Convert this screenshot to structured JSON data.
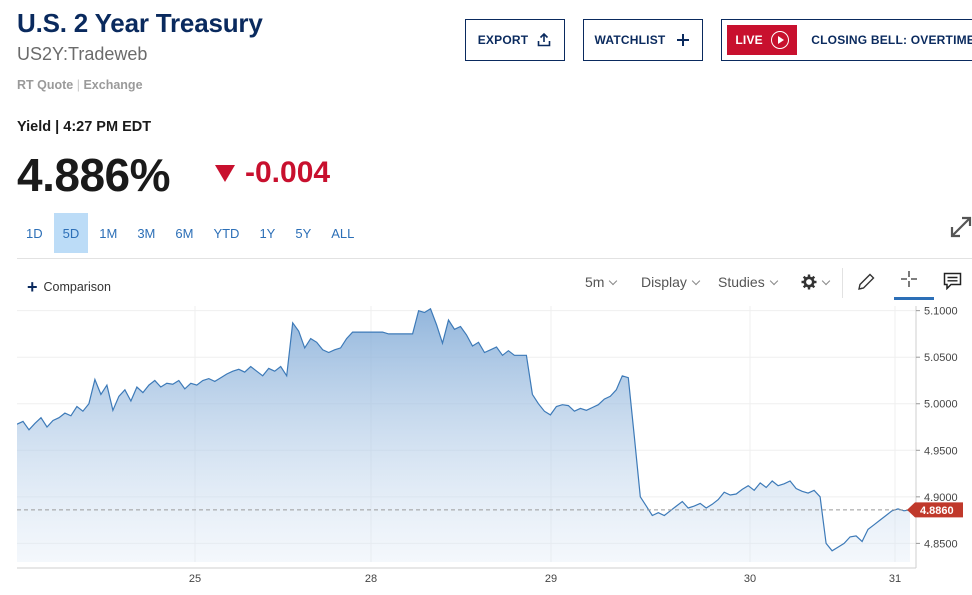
{
  "header": {
    "title": "U.S. 2 Year Treasury",
    "symbol": "US2Y:Tradeweb",
    "quote_type": "RT Quote",
    "quote_source": "Exchange",
    "export_label": "EXPORT",
    "watchlist_label": "WATCHLIST",
    "live_label": "LIVE",
    "closing_bell_label": "CLOSING BELL: OVERTIME"
  },
  "quote": {
    "label": "Yield",
    "time": "4:27 PM EDT",
    "price": "4.886%",
    "change": "-0.004",
    "change_color": "#c8102e"
  },
  "ranges": [
    "1D",
    "5D",
    "1M",
    "3M",
    "6M",
    "YTD",
    "1Y",
    "5Y",
    "ALL"
  ],
  "active_range": "5D",
  "toolbar": {
    "comparison_label": "Comparison",
    "interval_label": "5m",
    "display_label": "Display",
    "studies_label": "Studies"
  },
  "chart_data": {
    "type": "area",
    "x_ticks": [
      "25",
      "28",
      "29",
      "30",
      "31"
    ],
    "y_ticks": [
      "5.1000",
      "5.0500",
      "5.0000",
      "4.9500",
      "4.9000",
      "4.8500"
    ],
    "ylim": [
      4.83,
      5.105
    ],
    "current_value_label": "4.8860",
    "current_value": 4.886,
    "line_color": "#3d7ab8",
    "accent_color": "#c0392b",
    "grid": true,
    "series": [
      {
        "values": [
          4.978,
          4.981,
          4.972,
          4.979,
          4.985,
          4.975,
          4.982,
          4.985,
          4.99,
          4.987,
          4.997,
          4.992,
          5.0,
          5.026,
          5.01,
          5.02,
          4.993,
          5.008,
          5.015,
          5.003,
          5.018,
          5.012,
          5.02,
          5.025,
          5.018,
          5.022,
          5.021,
          5.025,
          5.016,
          5.022,
          5.02,
          5.025,
          5.027,
          5.024,
          5.028,
          5.032,
          5.035,
          5.037,
          5.034,
          5.04,
          5.035,
          5.03,
          5.038,
          5.035,
          5.04,
          5.03,
          5.087,
          5.078,
          5.06,
          5.07,
          5.066,
          5.058,
          5.055,
          5.058,
          5.06,
          5.07,
          5.077,
          5.077,
          5.077,
          5.077,
          5.077,
          5.077,
          5.075,
          5.075,
          5.075,
          5.075,
          5.075,
          5.1,
          5.098,
          5.102,
          5.085,
          5.065,
          5.09,
          5.08,
          5.083,
          5.074,
          5.062,
          5.066,
          5.055,
          5.058,
          5.061,
          5.052,
          5.057,
          5.052,
          5.052,
          5.052,
          5.01,
          5.0,
          4.992,
          4.988,
          4.997,
          4.999,
          4.998,
          4.992,
          4.995,
          4.993,
          4.996,
          4.999,
          5.005,
          5.008,
          5.015,
          5.03,
          5.028,
          4.965,
          4.9,
          4.89,
          4.88,
          4.883,
          4.88,
          4.885,
          4.89,
          4.895,
          4.888,
          4.89,
          4.893,
          4.888,
          4.892,
          4.897,
          4.905,
          4.902,
          4.903,
          4.908,
          4.912,
          4.907,
          4.915,
          4.91,
          4.917,
          4.912,
          4.914,
          4.917,
          4.909,
          4.906,
          4.904,
          4.907,
          4.9,
          4.85,
          4.842,
          4.846,
          4.85,
          4.857,
          4.858,
          4.852,
          4.865,
          4.87,
          4.875,
          4.88,
          4.885,
          4.887,
          4.885,
          4.886
        ]
      }
    ]
  }
}
